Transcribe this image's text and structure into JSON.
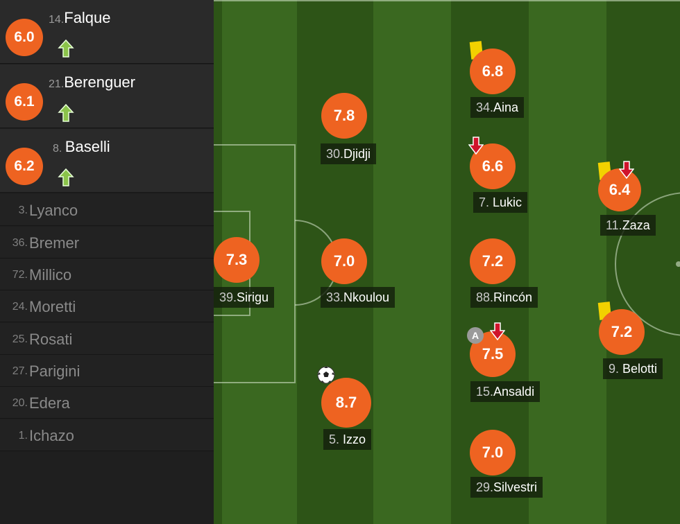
{
  "substitutes": [
    {
      "number": "14.",
      "name": "Falque",
      "rating": "6.0"
    },
    {
      "number": "21.",
      "name": "Berenguer",
      "rating": "6.1"
    },
    {
      "number": "8. ",
      "name": "Baselli",
      "rating": "6.2"
    }
  ],
  "bench": [
    {
      "number": "3.",
      "name": "Lyanco"
    },
    {
      "number": "36.",
      "name": "Bremer"
    },
    {
      "number": "72.",
      "name": "Millico"
    },
    {
      "number": "24.",
      "name": "Moretti"
    },
    {
      "number": "25.",
      "name": "Rosati"
    },
    {
      "number": "27.",
      "name": "Parigini"
    },
    {
      "number": "20.",
      "name": "Edera"
    },
    {
      "number": "1.",
      "name": "Ichazo"
    }
  ],
  "players": {
    "sirigu": {
      "number": "39.",
      "name": "Sirigu",
      "rating": "7.3"
    },
    "djidji": {
      "number": "30.",
      "name": "Djidji",
      "rating": "7.8"
    },
    "nkoulou": {
      "number": "33.",
      "name": "Nkoulou",
      "rating": "7.0"
    },
    "izzo": {
      "number": "5. ",
      "name": "Izzo",
      "rating": "8.7"
    },
    "aina": {
      "number": "34.",
      "name": "Aina",
      "rating": "6.8"
    },
    "lukic": {
      "number": "7. ",
      "name": "Lukic",
      "rating": "6.6"
    },
    "rincon": {
      "number": "88.",
      "name": "Rincón",
      "rating": "7.2"
    },
    "ansaldi": {
      "number": "15.",
      "name": "Ansaldi",
      "rating": "7.5",
      "captain_badge": "A"
    },
    "silvestri": {
      "number": "29.",
      "name": "Silvestri",
      "rating": "7.0"
    },
    "zaza": {
      "number": "11.",
      "name": "Zaza",
      "rating": "6.4"
    },
    "belotti": {
      "number": "9. ",
      "name": "Belotti",
      "rating": "7.2"
    }
  },
  "colors": {
    "rating_circle": "#ee6321",
    "sub_in_arrow": "#8bc34a",
    "sub_out_arrow": "#d0142b",
    "yellow_card": "#f2d100",
    "pitch_light": "#3a6820",
    "pitch_dark": "#2d5417"
  },
  "icons": {
    "sub_in": "green-up-arrow-icon",
    "sub_out": "red-down-arrow-icon",
    "yellow_card": "yellow-card-icon",
    "goal": "football-icon",
    "captain": "captain-badge-icon"
  }
}
